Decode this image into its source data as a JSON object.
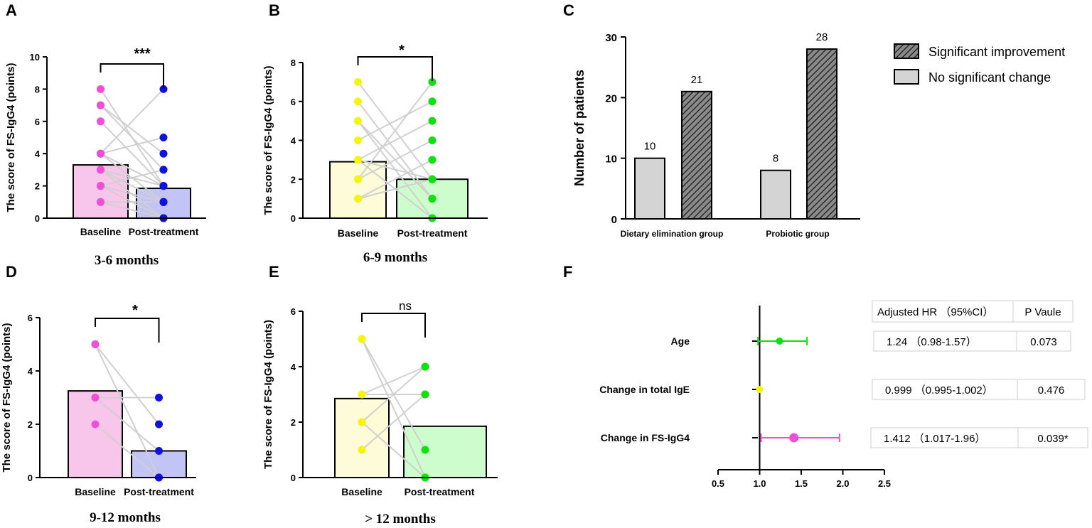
{
  "colors": {
    "baseline_pink_fill": "#f7c6ea",
    "post_blue_fill": "#c2c4f6",
    "baseline_yellow_fill": "#fdfbd8",
    "post_green_fill": "#cdfccd",
    "dot_pink": "#ee4fd6",
    "dot_blue": "#1010e0",
    "dot_yellow": "#f5f50a",
    "dot_green": "#10e010",
    "line_gray": "#d0d0d0",
    "bar_gray": "#d4d4d4",
    "bar_hatch": "#555555"
  },
  "chart_data": [
    {
      "panel": "A",
      "type": "bar",
      "subtitle": "3-6 months",
      "ylabel": "The score of FS-IgG4 (points)",
      "ylim": [
        0,
        10
      ],
      "yticks": [
        "0",
        "2",
        "4",
        "6",
        "8",
        "10"
      ],
      "categories": [
        "Baseline",
        "Post-treatment"
      ],
      "values": [
        3.3,
        1.85
      ],
      "significance": "***",
      "pairs": [
        [
          8,
          2
        ],
        [
          7,
          4
        ],
        [
          7,
          3
        ],
        [
          6,
          2
        ],
        [
          4,
          8
        ],
        [
          4,
          5
        ],
        [
          4,
          1
        ],
        [
          3,
          2
        ],
        [
          3,
          0
        ],
        [
          2,
          3
        ],
        [
          2,
          1
        ],
        [
          2,
          0
        ],
        [
          1,
          1
        ],
        [
          1,
          0
        ],
        [
          4,
          2
        ],
        [
          3,
          1
        ]
      ]
    },
    {
      "panel": "B",
      "type": "bar",
      "subtitle": "6-9 months",
      "ylabel": "The score of FS-IgG4 (points)",
      "ylim": [
        0,
        8
      ],
      "yticks": [
        "0",
        "2",
        "4",
        "6",
        "8"
      ],
      "categories": [
        "Baseline",
        "Post-treatment"
      ],
      "values": [
        2.9,
        2.0
      ],
      "significance": "*",
      "pairs": [
        [
          7,
          2
        ],
        [
          6,
          1
        ],
        [
          5,
          0
        ],
        [
          4,
          6
        ],
        [
          3,
          5
        ],
        [
          3,
          2
        ],
        [
          2,
          7
        ],
        [
          2,
          4
        ],
        [
          1,
          3
        ],
        [
          1,
          2
        ],
        [
          5,
          1
        ],
        [
          3,
          0
        ]
      ]
    },
    {
      "panel": "C",
      "type": "bar",
      "ylabel": "Number of patients",
      "ylim": [
        0,
        30
      ],
      "yticks": [
        "0",
        "10",
        "20",
        "30"
      ],
      "categories": [
        "Dietary elimination group",
        "Probiotic group"
      ],
      "series": [
        {
          "name": "No significant change",
          "values": [
            10,
            8
          ],
          "labels": [
            "10",
            "8"
          ]
        },
        {
          "name": "Significant improvement",
          "values": [
            21,
            28
          ],
          "labels": [
            "21",
            "28"
          ]
        }
      ],
      "legend": [
        "Significant improvement",
        "No significant change"
      ]
    },
    {
      "panel": "D",
      "type": "bar",
      "subtitle": "9-12 months",
      "ylabel": "The score of FS-IgG4 (points)",
      "ylim": [
        0,
        6
      ],
      "yticks": [
        "0",
        "2",
        "4",
        "6"
      ],
      "categories": [
        "Baseline",
        "Post-treatment"
      ],
      "values": [
        3.25,
        1.0
      ],
      "significance": "*",
      "pairs": [
        [
          5,
          2
        ],
        [
          5,
          0
        ],
        [
          3,
          3
        ],
        [
          3,
          1
        ],
        [
          2,
          0
        ]
      ]
    },
    {
      "panel": "E",
      "type": "bar",
      "subtitle": "> 12 months",
      "ylabel": "The score of FS-IgG4 (points)",
      "ylim": [
        0,
        6
      ],
      "yticks": [
        "0",
        "2",
        "4",
        "6"
      ],
      "categories": [
        "Baseline",
        "Post-treatment"
      ],
      "values": [
        2.85,
        1.85
      ],
      "significance": "ns",
      "pairs": [
        [
          5,
          1
        ],
        [
          5,
          0
        ],
        [
          3,
          4
        ],
        [
          3,
          3
        ],
        [
          2,
          4
        ],
        [
          1,
          3
        ],
        [
          2,
          0
        ]
      ]
    },
    {
      "panel": "F",
      "type": "forest",
      "xlim": [
        0.5,
        2.5
      ],
      "xticks": [
        "0.5",
        "1.0",
        "1.5",
        "2.0",
        "2.5"
      ],
      "reference": 1.0,
      "headers": [
        "Adjusted HR （95%CI）",
        "P Vaule"
      ],
      "rows": [
        {
          "label": "Age",
          "hr": 1.24,
          "lo": 0.98,
          "hi": 1.57,
          "ci_text": "1.24 （0.98-1.57）",
          "p_text": "0.073",
          "color": "#10e010"
        },
        {
          "label": "Change in total IgE",
          "hr": 0.999,
          "lo": 0.995,
          "hi": 1.002,
          "ci_text": "0.999 （0.995-1.002）",
          "p_text": "0.476",
          "color": "#f5f50a"
        },
        {
          "label": "Change in FS-IgG4",
          "hr": 1.412,
          "lo": 1.017,
          "hi": 1.96,
          "ci_text": "1.412 （1.017-1.96）",
          "p_text": "0.039*",
          "color": "#ee4fd6"
        }
      ]
    }
  ]
}
